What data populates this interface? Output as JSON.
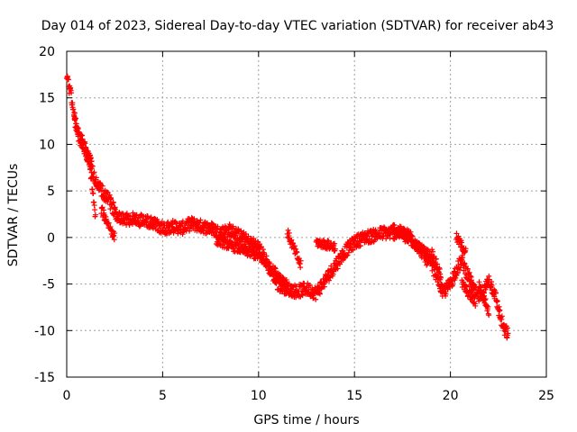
{
  "chart_data": {
    "type": "scatter",
    "title": "Day 014 of 2023, Sidereal Day-to-day VTEC variation (SDTVAR) for receiver ab43",
    "xlabel": "GPS time / hours",
    "ylabel": "SDTVAR / TECUs",
    "xlim": [
      0,
      25
    ],
    "ylim": [
      -15,
      20
    ],
    "x_ticks": [
      0,
      5,
      10,
      15,
      20,
      25
    ],
    "y_ticks": [
      -15,
      -10,
      -5,
      0,
      5,
      10,
      15,
      20
    ],
    "x_tick_labels": [
      "0",
      "5",
      "10",
      "15",
      "20",
      "25"
    ],
    "y_tick_labels": [
      "-15",
      "-10",
      "-5",
      "0",
      "5",
      "10",
      "15",
      "20"
    ],
    "grid": true,
    "marker": "+",
    "series": [
      {
        "name": "SDTVAR",
        "color": "#ff0000",
        "trend": [
          [
            0.0,
            17.5
          ],
          [
            0.2,
            15.5
          ],
          [
            0.4,
            13.0
          ],
          [
            0.6,
            11.0
          ],
          [
            0.9,
            9.5
          ],
          [
            1.2,
            8.0
          ],
          [
            1.5,
            6.0
          ],
          [
            1.8,
            5.0
          ],
          [
            2.2,
            4.0
          ],
          [
            2.6,
            2.5
          ],
          [
            3.0,
            2.0
          ],
          [
            3.5,
            2.0
          ],
          [
            4.0,
            1.8
          ],
          [
            4.5,
            1.5
          ],
          [
            5.0,
            1.0
          ],
          [
            5.5,
            1.2
          ],
          [
            6.0,
            1.0
          ],
          [
            6.5,
            1.5
          ],
          [
            7.0,
            1.2
          ],
          [
            7.5,
            1.0
          ],
          [
            8.0,
            0.5
          ],
          [
            8.5,
            0.8
          ],
          [
            9.0,
            0.2
          ],
          [
            9.5,
            -0.5
          ],
          [
            10.0,
            -1.0
          ],
          [
            10.5,
            -3.0
          ],
          [
            11.0,
            -5.0
          ],
          [
            11.5,
            -5.5
          ],
          [
            12.0,
            -5.8
          ],
          [
            12.5,
            -5.5
          ],
          [
            13.0,
            -6.0
          ],
          [
            13.5,
            -4.5
          ],
          [
            14.0,
            -3.0
          ],
          [
            14.5,
            -1.5
          ],
          [
            15.0,
            -0.5
          ],
          [
            15.5,
            0.0
          ],
          [
            16.0,
            0.2
          ],
          [
            16.5,
            0.5
          ],
          [
            17.0,
            0.5
          ],
          [
            17.5,
            0.5
          ],
          [
            18.0,
            0.0
          ],
          [
            18.5,
            -1.5
          ],
          [
            19.0,
            -3.0
          ],
          [
            19.3,
            -4.0
          ],
          [
            19.6,
            -6.0
          ],
          [
            20.0,
            -5.0
          ],
          [
            20.3,
            -3.5
          ],
          [
            20.6,
            -2.5
          ],
          [
            21.0,
            -4.5
          ],
          [
            21.3,
            -6.0
          ],
          [
            21.6,
            -6.5
          ],
          [
            22.0,
            -4.5
          ],
          [
            22.3,
            -6.0
          ],
          [
            22.6,
            -8.5
          ],
          [
            22.8,
            -10.0
          ],
          [
            23.0,
            -10.3
          ]
        ],
        "extra_segments": [
          {
            "x": [
              0.4,
              1.3
            ],
            "y": [
              12.5,
              8.0
            ]
          },
          {
            "x": [
              1.2,
              1.5
            ],
            "y": [
              8.0,
              2.0
            ]
          },
          {
            "x": [
              1.8,
              2.5
            ],
            "y": [
              3.0,
              0.0
            ]
          },
          {
            "x": [
              7.8,
              10.0
            ],
            "y": [
              -0.3,
              -2.0
            ]
          },
          {
            "x": [
              10.0,
              11.5
            ],
            "y": [
              -2.0,
              -5.0
            ]
          },
          {
            "x": [
              11.5,
              12.2
            ],
            "y": [
              0.5,
              -3.0
            ]
          },
          {
            "x": [
              13.0,
              14.0
            ],
            "y": [
              -0.5,
              -1.0
            ]
          },
          {
            "x": [
              17.0,
              19.0
            ],
            "y": [
              1.0,
              -2.0
            ]
          },
          {
            "x": [
              19.0,
              19.5
            ],
            "y": [
              -1.5,
              -4.0
            ]
          },
          {
            "x": [
              20.3,
              20.8
            ],
            "y": [
              0.0,
              -1.5
            ]
          },
          {
            "x": [
              20.6,
              21.3
            ],
            "y": [
              -5.0,
              -7.0
            ]
          },
          {
            "x": [
              21.5,
              22.0
            ],
            "y": [
              -5.0,
              -8.0
            ]
          }
        ]
      }
    ]
  }
}
